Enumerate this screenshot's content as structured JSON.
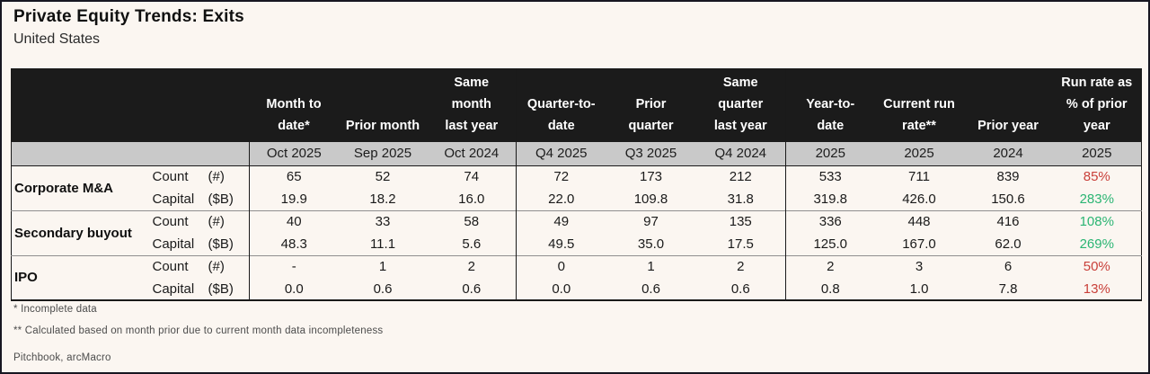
{
  "page": {
    "title": "Private Equity Trends: Exits",
    "subtitle": "United States",
    "footnotes": [
      "* Incomplete data",
      "** Calculated based on month prior due to current month data incompleteness"
    ],
    "source": "Pitchbook, arcMacro"
  },
  "colors": {
    "background": "#fbf6f1",
    "header_bg": "#1b1b1b",
    "header_text": "#ffffff",
    "period_band_bg": "#c9c9c9",
    "body_text": "#1a1a1a",
    "positive": "#2bb573",
    "negative": "#c9403a"
  },
  "table": {
    "columns": [
      {
        "header": "Month to\ndate*",
        "period": "Oct 2025"
      },
      {
        "header": "Prior month",
        "period": "Sep 2025"
      },
      {
        "header": "Same\nmonth\nlast year",
        "period": "Oct 2024"
      },
      {
        "header": "Quarter-to-\ndate",
        "period": "Q4 2025"
      },
      {
        "header": "Prior\nquarter",
        "period": "Q3 2025"
      },
      {
        "header": "Same\nquarter\nlast year",
        "period": "Q4 2024"
      },
      {
        "header": "Year-to-\ndate",
        "period": "2025"
      },
      {
        "header": "Current run\nrate**",
        "period": "2025"
      },
      {
        "header": "Prior year",
        "period": "2024"
      },
      {
        "header": "Run rate as\n% of prior\nyear",
        "period": "2025"
      }
    ],
    "groups": [
      {
        "name": "Corporate M&A",
        "rows": [
          {
            "metric": "Count",
            "unit": "(#)",
            "values": [
              "65",
              "52",
              "74",
              "72",
              "173",
              "212",
              "533",
              "711",
              "839"
            ],
            "run_rate": {
              "text": "85%",
              "sentiment": "negative"
            }
          },
          {
            "metric": "Capital",
            "unit": "($B)",
            "values": [
              "19.9",
              "18.2",
              "16.0",
              "22.0",
              "109.8",
              "31.8",
              "319.8",
              "426.0",
              "150.6"
            ],
            "run_rate": {
              "text": "283%",
              "sentiment": "positive"
            }
          }
        ]
      },
      {
        "name": "Secondary buyout",
        "rows": [
          {
            "metric": "Count",
            "unit": "(#)",
            "values": [
              "40",
              "33",
              "58",
              "49",
              "97",
              "135",
              "336",
              "448",
              "416"
            ],
            "run_rate": {
              "text": "108%",
              "sentiment": "positive"
            }
          },
          {
            "metric": "Capital",
            "unit": "($B)",
            "values": [
              "48.3",
              "11.1",
              "5.6",
              "49.5",
              "35.0",
              "17.5",
              "125.0",
              "167.0",
              "62.0"
            ],
            "run_rate": {
              "text": "269%",
              "sentiment": "positive"
            }
          }
        ]
      },
      {
        "name": "IPO",
        "rows": [
          {
            "metric": "Count",
            "unit": "(#)",
            "values": [
              "-",
              "1",
              "2",
              "0",
              "1",
              "2",
              "2",
              "3",
              "6"
            ],
            "run_rate": {
              "text": "50%",
              "sentiment": "negative"
            }
          },
          {
            "metric": "Capital",
            "unit": "($B)",
            "values": [
              "0.0",
              "0.6",
              "0.6",
              "0.0",
              "0.6",
              "0.6",
              "0.8",
              "1.0",
              "7.8"
            ],
            "run_rate": {
              "text": "13%",
              "sentiment": "negative"
            }
          }
        ]
      }
    ]
  },
  "chart_data": {
    "type": "table",
    "title": "Private Equity Trends: Exits",
    "subtitle": "United States",
    "column_headers": [
      "Month to date* (Oct 2025)",
      "Prior month (Sep 2025)",
      "Same month last year (Oct 2024)",
      "Quarter-to-date (Q4 2025)",
      "Prior quarter (Q3 2025)",
      "Same quarter last year (Q4 2024)",
      "Year-to-date (2025)",
      "Current run rate** (2025)",
      "Prior year (2024)",
      "Run rate as % of prior year (2025)"
    ],
    "rows": [
      {
        "group": "Corporate M&A",
        "metric": "Count (#)",
        "values": [
          65,
          52,
          74,
          72,
          173,
          212,
          533,
          711,
          839,
          "85%"
        ]
      },
      {
        "group": "Corporate M&A",
        "metric": "Capital ($B)",
        "values": [
          19.9,
          18.2,
          16.0,
          22.0,
          109.8,
          31.8,
          319.8,
          426.0,
          150.6,
          "283%"
        ]
      },
      {
        "group": "Secondary buyout",
        "metric": "Count (#)",
        "values": [
          40,
          33,
          58,
          49,
          97,
          135,
          336,
          448,
          416,
          "108%"
        ]
      },
      {
        "group": "Secondary buyout",
        "metric": "Capital ($B)",
        "values": [
          48.3,
          11.1,
          5.6,
          49.5,
          35.0,
          17.5,
          125.0,
          167.0,
          62.0,
          "269%"
        ]
      },
      {
        "group": "IPO",
        "metric": "Count (#)",
        "values": [
          "-",
          1,
          2,
          0,
          1,
          2,
          2,
          3,
          6,
          "50%"
        ]
      },
      {
        "group": "IPO",
        "metric": "Capital ($B)",
        "values": [
          0.0,
          0.6,
          0.6,
          0.0,
          0.6,
          0.6,
          0.8,
          1.0,
          7.8,
          "13%"
        ]
      }
    ],
    "notes": [
      "* Incomplete data",
      "** Calculated based on month prior due to current month data incompleteness"
    ],
    "source": "Pitchbook, arcMacro"
  }
}
